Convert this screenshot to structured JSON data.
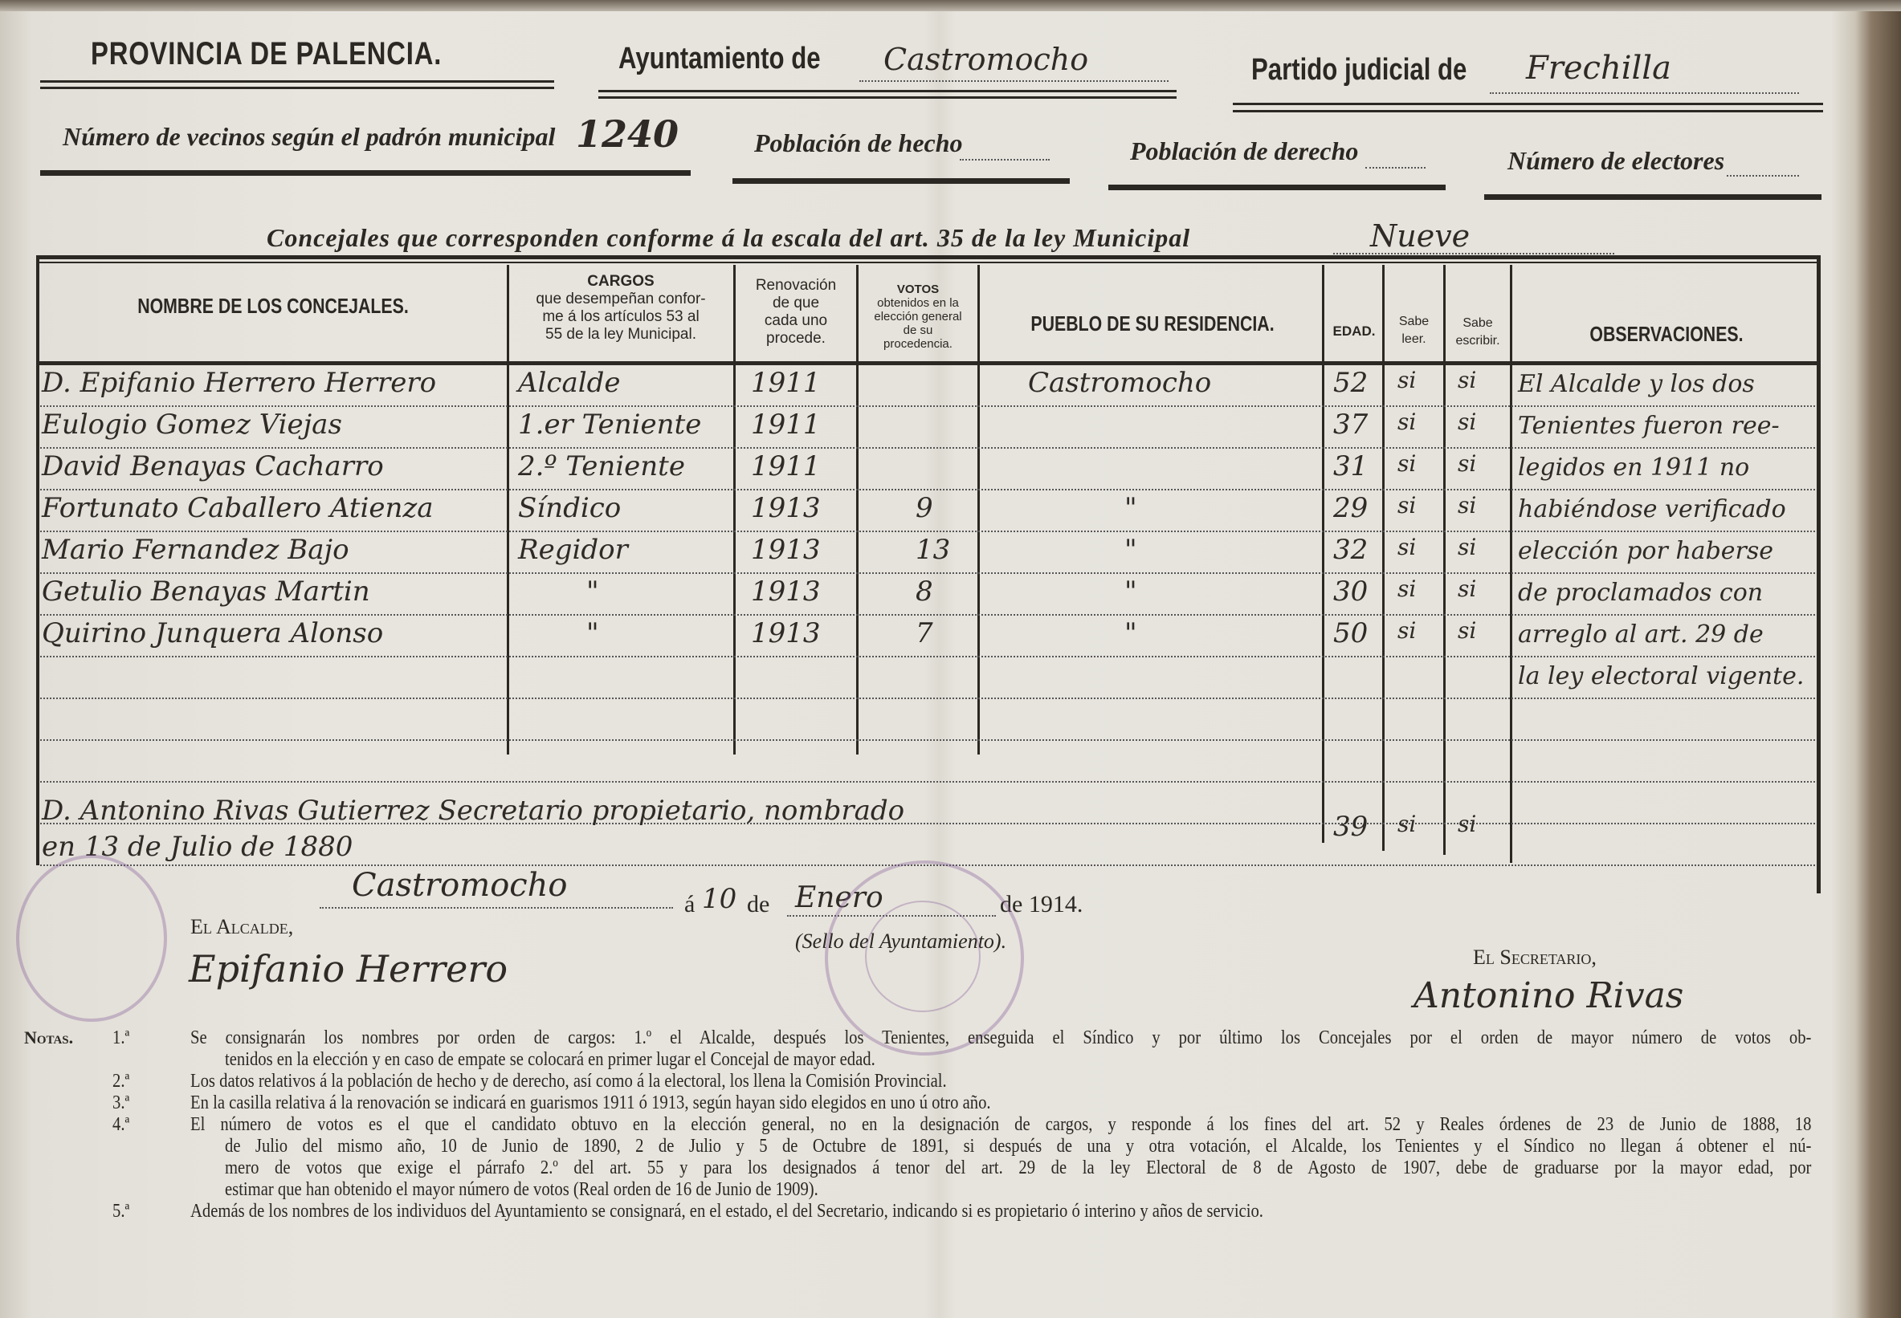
{
  "header": {
    "province": "PROVINCIA DE PALENCIA.",
    "ayuntamiento_label": "Ayuntamiento de",
    "ayuntamiento_value": "Castromocho",
    "partido_label": "Partido judicial de",
    "partido_value": "Frechilla",
    "vecinos_label": "Número de vecinos según el padrón municipal",
    "vecinos_value": "1240",
    "poblacion_hecho_label": "Población de hecho",
    "poblacion_derecho_label": "Población de derecho",
    "electores_label": "Número de electores",
    "concejales_label": "Concejales que corresponden conforme á la escala del art. 35 de la ley Municipal",
    "concejales_value": "Nueve"
  },
  "table": {
    "columns": {
      "nombre": "NOMBRE DE LOS CONCEJALES.",
      "cargos_title": "CARGOS",
      "cargos_sub": [
        "que desempeñan confor-",
        "me á los artículos 53 al",
        "55 de la ley Municipal."
      ],
      "renovacion": [
        "Renovación",
        "de que",
        "cada uno",
        "procede."
      ],
      "votos_title": "VOTOS",
      "votos_sub": [
        "obtenidos en la",
        "elección general",
        "de su",
        "procedencia."
      ],
      "pueblo": "PUEBLO DE SU RESIDENCIA.",
      "edad": "EDAD.",
      "leer": [
        "Sabe",
        "leer."
      ],
      "escribir": [
        "Sabe",
        "escribir."
      ],
      "observaciones": "OBSERVACIONES."
    },
    "rows": [
      {
        "nombre": "D. Epifanio Herrero Herrero",
        "cargo": "Alcalde",
        "renovacion": "1911",
        "votos": "",
        "pueblo": "Castromocho",
        "edad": "52",
        "leer": "si",
        "escribir": "si"
      },
      {
        "nombre": "Eulogio Gomez Viejas",
        "cargo": "1.er Teniente",
        "renovacion": "1911",
        "votos": "",
        "pueblo": "",
        "edad": "37",
        "leer": "si",
        "escribir": "si"
      },
      {
        "nombre": "David Benayas Cacharro",
        "cargo": "2.º Teniente",
        "renovacion": "1911",
        "votos": "",
        "pueblo": "",
        "edad": "31",
        "leer": "si",
        "escribir": "si"
      },
      {
        "nombre": "Fortunato Caballero Atienza",
        "cargo": "Síndico",
        "renovacion": "1913",
        "votos": "9",
        "pueblo": "\"",
        "edad": "29",
        "leer": "si",
        "escribir": "si"
      },
      {
        "nombre": "Mario Fernandez Bajo",
        "cargo": "Regidor",
        "renovacion": "1913",
        "votos": "13",
        "pueblo": "\"",
        "edad": "32",
        "leer": "si",
        "escribir": "si"
      },
      {
        "nombre": "Getulio Benayas Martin",
        "cargo": "\"",
        "renovacion": "1913",
        "votos": "8",
        "pueblo": "\"",
        "edad": "30",
        "leer": "si",
        "escribir": "si"
      },
      {
        "nombre": "Quirino Junquera Alonso",
        "cargo": "\"",
        "renovacion": "1913",
        "votos": "7",
        "pueblo": "\"",
        "edad": "50",
        "leer": "si",
        "escribir": "si"
      }
    ],
    "observaciones_lines": [
      "El Alcalde y los dos",
      "Tenientes fueron ree-",
      "legidos en 1911 no",
      "habiéndose verificado",
      "elección por haberse",
      "de proclamados con",
      "arreglo al art. 29 de",
      "la ley electoral vigente."
    ],
    "secretario": {
      "line1": "D. Antonino Rivas Gutierrez Secretario propietario, nombrado",
      "line2": "en 13 de Julio de 1880",
      "edad": "39",
      "leer": "si",
      "escribir": "si"
    }
  },
  "footer": {
    "place": "Castromocho",
    "a_label": "á",
    "day": "10",
    "de_label": "de",
    "month": "Enero",
    "year_label": "de 1914.",
    "alcalde_label": "El Alcalde,",
    "alcalde_signature": "Epifanio Herrero",
    "sello_label": "(Sello del Ayuntamiento).",
    "secretario_label": "El Secretario,",
    "secretario_signature": "Antonino Rivas"
  },
  "notes": {
    "label": "Notas.",
    "lines": [
      {
        "num": "1.ª",
        "text": "Se consignarán los nombres por orden de cargos: 1.º el Alcalde, después los Tenientes, enseguida el Síndico y por último los Concejales por el orden de mayor número de votos ob-"
      },
      {
        "num": "",
        "text": "tenidos en la elección y en caso de empate se colocará en primer lugar el Concejal de mayor edad."
      },
      {
        "num": "2.ª",
        "text": "Los datos relativos á la población de hecho y de derecho, así como á la electoral, los llena la Comisión Provincial."
      },
      {
        "num": "3.ª",
        "text": "En la casilla relativa á la renovación se indicará en guarismos 1911 ó 1913, según hayan sido elegidos en uno ú otro año."
      },
      {
        "num": "4.ª",
        "text": "El número de votos es el que el candidato obtuvo en la elección general, no en la designación de cargos, y responde á los fines del art. 52 y Reales órdenes de 23 de Junio de 1888, 18"
      },
      {
        "num": "",
        "text": "de Julio del mismo año, 10 de Junio de 1890, 2 de Julio y 5 de Octubre de 1891, si después de una y otra votación, el Alcalde, los Tenientes y el Síndico no llegan á obtener el nú-"
      },
      {
        "num": "",
        "text": "mero de votos que exige el párrafo 2.º del art. 55 y para los designados á tenor del art. 29 de la ley Electoral de 8 de Agosto de 1907, debe de graduarse por la mayor edad, por"
      },
      {
        "num": "",
        "text": "estimar que han obtenido el mayor número de votos (Real orden de 16 de Junio de 1909)."
      },
      {
        "num": "5.ª",
        "text": "Además de los nombres de los individuos del Ayuntamiento se consignará, en el estado, el del Secretario, indicando si es propietario ó interino y años de servicio."
      }
    ]
  },
  "colors": {
    "paper": "#e6e3dc",
    "ink": "#2b2824",
    "stamp": "#8a5a96"
  }
}
